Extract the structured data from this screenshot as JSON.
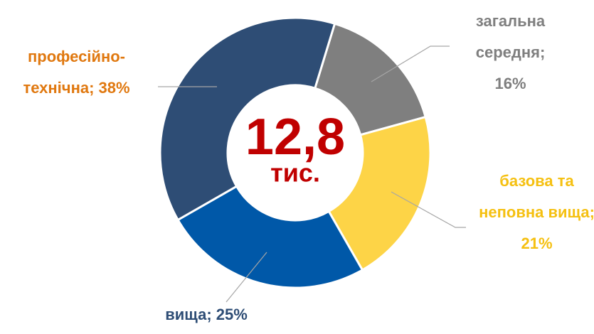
{
  "chart_data": {
    "type": "donut",
    "values": [
      16,
      21,
      25,
      38
    ],
    "value_labels": [
      "загальна середня; 16%",
      "базова та неповна вища; 21%",
      "вища; 25%",
      "професійно-технічна; 38%"
    ],
    "colors": [
      "#7f7f7f",
      "#fdd447",
      "#0058a8",
      "#2e4d75"
    ],
    "label_colors": [
      "#7f7f7f",
      "#f5c011",
      "#2e4d75",
      "#e0780f"
    ],
    "center_value": "12,8",
    "center_unit": "тис."
  }
}
